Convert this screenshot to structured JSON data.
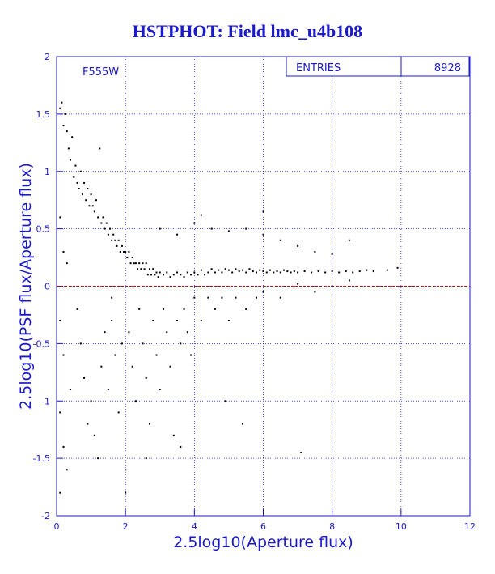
{
  "chart_data": {
    "type": "scatter",
    "title": "HSTPHOT: Field lmc_u4b108",
    "xlabel": "2.5log10(Aperture flux)",
    "ylabel": "2.5log10(PSF flux/Aperture flux)",
    "xlim": [
      0,
      12
    ],
    "ylim": [
      -2,
      2
    ],
    "xticks": [
      "0",
      "2",
      "4",
      "6",
      "8",
      "10",
      "12"
    ],
    "yticks": [
      "2",
      "1.5",
      "1",
      "0.5",
      "0",
      "-0.5",
      "-1",
      "-1.5",
      "-2"
    ],
    "grid": true,
    "reference_line_y": 0,
    "annotation": "F555W",
    "stats_box": {
      "label": "ENTRIES",
      "value": "8928"
    },
    "colors": {
      "text": "#1a1acc",
      "frame": "#1a1acc",
      "points": "#000000",
      "reference_line": "#cc0000"
    },
    "series": [
      {
        "values": [
          [
            0.1,
            1.55
          ],
          [
            0.15,
            1.6
          ],
          [
            0.2,
            1.4
          ],
          [
            0.25,
            1.5
          ],
          [
            0.3,
            1.35
          ],
          [
            0.35,
            1.2
          ],
          [
            0.4,
            1.1
          ],
          [
            0.45,
            1.3
          ],
          [
            0.5,
            0.95
          ],
          [
            0.55,
            1.05
          ],
          [
            0.6,
            0.9
          ],
          [
            0.65,
            0.85
          ],
          [
            0.7,
            1.0
          ],
          [
            0.75,
            0.8
          ],
          [
            0.8,
            0.9
          ],
          [
            0.85,
            0.75
          ],
          [
            0.9,
            0.85
          ],
          [
            0.95,
            0.7
          ],
          [
            1.0,
            0.8
          ],
          [
            1.05,
            0.7
          ],
          [
            1.1,
            0.65
          ],
          [
            1.15,
            0.75
          ],
          [
            1.2,
            0.6
          ],
          [
            1.25,
            1.2
          ],
          [
            1.3,
            0.55
          ],
          [
            1.35,
            0.6
          ],
          [
            1.4,
            0.5
          ],
          [
            1.45,
            0.55
          ],
          [
            1.5,
            0.45
          ],
          [
            1.55,
            0.5
          ],
          [
            1.6,
            0.4
          ],
          [
            1.65,
            0.45
          ],
          [
            1.7,
            0.4
          ],
          [
            1.75,
            0.35
          ],
          [
            1.8,
            0.4
          ],
          [
            1.85,
            0.3
          ],
          [
            1.9,
            0.35
          ],
          [
            1.95,
            0.3
          ],
          [
            2.0,
            0.3
          ],
          [
            2.05,
            0.25
          ],
          [
            2.1,
            0.3
          ],
          [
            2.15,
            0.2
          ],
          [
            2.2,
            0.25
          ],
          [
            2.25,
            0.2
          ],
          [
            2.3,
            0.2
          ],
          [
            2.35,
            0.15
          ],
          [
            2.4,
            0.2
          ],
          [
            2.45,
            0.15
          ],
          [
            2.5,
            0.2
          ],
          [
            2.55,
            0.15
          ],
          [
            2.6,
            0.2
          ],
          [
            2.65,
            0.1
          ],
          [
            2.7,
            0.15
          ],
          [
            2.75,
            0.1
          ],
          [
            2.8,
            0.15
          ],
          [
            2.85,
            0.1
          ],
          [
            2.9,
            0.12
          ],
          [
            2.95,
            0.08
          ],
          [
            3.0,
            0.12
          ],
          [
            3.1,
            0.1
          ],
          [
            3.2,
            0.12
          ],
          [
            3.3,
            0.08
          ],
          [
            3.4,
            0.1
          ],
          [
            3.5,
            0.12
          ],
          [
            3.6,
            0.1
          ],
          [
            3.7,
            0.08
          ],
          [
            3.8,
            0.12
          ],
          [
            3.9,
            0.1
          ],
          [
            4.0,
            0.12
          ],
          [
            4.1,
            0.1
          ],
          [
            4.2,
            0.14
          ],
          [
            4.3,
            0.1
          ],
          [
            4.4,
            0.12
          ],
          [
            4.5,
            0.15
          ],
          [
            4.6,
            0.12
          ],
          [
            4.7,
            0.14
          ],
          [
            4.8,
            0.12
          ],
          [
            4.9,
            0.15
          ],
          [
            5.0,
            0.14
          ],
          [
            5.1,
            0.12
          ],
          [
            5.2,
            0.15
          ],
          [
            5.3,
            0.13
          ],
          [
            5.4,
            0.14
          ],
          [
            5.5,
            0.12
          ],
          [
            5.6,
            0.15
          ],
          [
            5.7,
            0.13
          ],
          [
            5.8,
            0.12
          ],
          [
            5.9,
            0.14
          ],
          [
            6.0,
            0.13
          ],
          [
            6.1,
            0.12
          ],
          [
            6.2,
            0.14
          ],
          [
            6.3,
            0.12
          ],
          [
            6.4,
            0.13
          ],
          [
            6.5,
            0.12
          ],
          [
            6.6,
            0.14
          ],
          [
            6.7,
            0.13
          ],
          [
            6.8,
            0.12
          ],
          [
            6.9,
            0.13
          ],
          [
            7.0,
            0.12
          ],
          [
            7.2,
            0.13
          ],
          [
            7.4,
            0.12
          ],
          [
            7.6,
            0.13
          ],
          [
            7.8,
            0.12
          ],
          [
            8.0,
            0.13
          ],
          [
            8.2,
            0.12
          ],
          [
            8.4,
            0.13
          ],
          [
            8.6,
            0.12
          ],
          [
            8.8,
            0.13
          ],
          [
            9.0,
            0.14
          ],
          [
            9.2,
            0.13
          ],
          [
            9.6,
            0.14
          ],
          [
            9.9,
            0.16
          ],
          [
            0.1,
            0.6
          ],
          [
            0.2,
            0.3
          ],
          [
            0.3,
            0.2
          ],
          [
            0.1,
            -0.3
          ],
          [
            0.2,
            -0.6
          ],
          [
            0.4,
            -0.9
          ],
          [
            0.1,
            -1.1
          ],
          [
            0.2,
            -1.4
          ],
          [
            0.3,
            -1.6
          ],
          [
            0.1,
            -1.8
          ],
          [
            0.6,
            -0.2
          ],
          [
            0.7,
            -0.5
          ],
          [
            0.8,
            -0.8
          ],
          [
            0.9,
            -1.2
          ],
          [
            1.0,
            -1.0
          ],
          [
            1.1,
            -1.3
          ],
          [
            1.2,
            -1.5
          ],
          [
            1.3,
            -0.7
          ],
          [
            1.4,
            -0.4
          ],
          [
            1.5,
            -0.9
          ],
          [
            1.6,
            -0.3
          ],
          [
            1.7,
            -0.6
          ],
          [
            1.8,
            -1.1
          ],
          [
            1.9,
            -0.5
          ],
          [
            2.0,
            -1.6
          ],
          [
            2.0,
            -1.8
          ],
          [
            2.1,
            -0.4
          ],
          [
            2.2,
            -0.7
          ],
          [
            2.3,
            -1.0
          ],
          [
            2.4,
            -0.2
          ],
          [
            2.5,
            -0.5
          ],
          [
            2.6,
            -0.8
          ],
          [
            2.7,
            -1.2
          ],
          [
            2.8,
            -0.3
          ],
          [
            2.9,
            -0.6
          ],
          [
            3.0,
            -0.9
          ],
          [
            3.1,
            -0.2
          ],
          [
            3.2,
            -0.4
          ],
          [
            3.3,
            -0.7
          ],
          [
            3.4,
            -1.3
          ],
          [
            3.5,
            -0.3
          ],
          [
            3.6,
            -0.5
          ],
          [
            3.7,
            -0.2
          ],
          [
            3.8,
            -0.4
          ],
          [
            3.9,
            -0.6
          ],
          [
            4.0,
            -0.1
          ],
          [
            4.2,
            -0.3
          ],
          [
            4.4,
            -0.1
          ],
          [
            4.6,
            -0.2
          ],
          [
            4.8,
            -0.1
          ],
          [
            5.0,
            -0.3
          ],
          [
            5.2,
            -0.1
          ],
          [
            5.5,
            -0.2
          ],
          [
            5.8,
            -0.1
          ],
          [
            6.0,
            -0.05
          ],
          [
            6.5,
            -0.1
          ],
          [
            7.0,
            0.02
          ],
          [
            7.5,
            -0.05
          ],
          [
            8.0,
            0.0
          ],
          [
            8.5,
            0.05
          ],
          [
            3.0,
            0.5
          ],
          [
            3.5,
            0.45
          ],
          [
            4.0,
            0.55
          ],
          [
            4.5,
            0.5
          ],
          [
            5.0,
            0.48
          ],
          [
            5.5,
            0.5
          ],
          [
            6.0,
            0.45
          ],
          [
            6.5,
            0.4
          ],
          [
            7.0,
            0.35
          ],
          [
            7.5,
            0.3
          ],
          [
            8.0,
            0.28
          ],
          [
            8.5,
            0.4
          ],
          [
            6.0,
            0.65
          ],
          [
            4.2,
            0.62
          ],
          [
            7.1,
            -1.45
          ],
          [
            5.4,
            -1.2
          ],
          [
            4.9,
            -1.0
          ],
          [
            3.6,
            -1.4
          ],
          [
            2.6,
            -1.5
          ],
          [
            1.6,
            -0.1
          ]
        ]
      }
    ]
  }
}
